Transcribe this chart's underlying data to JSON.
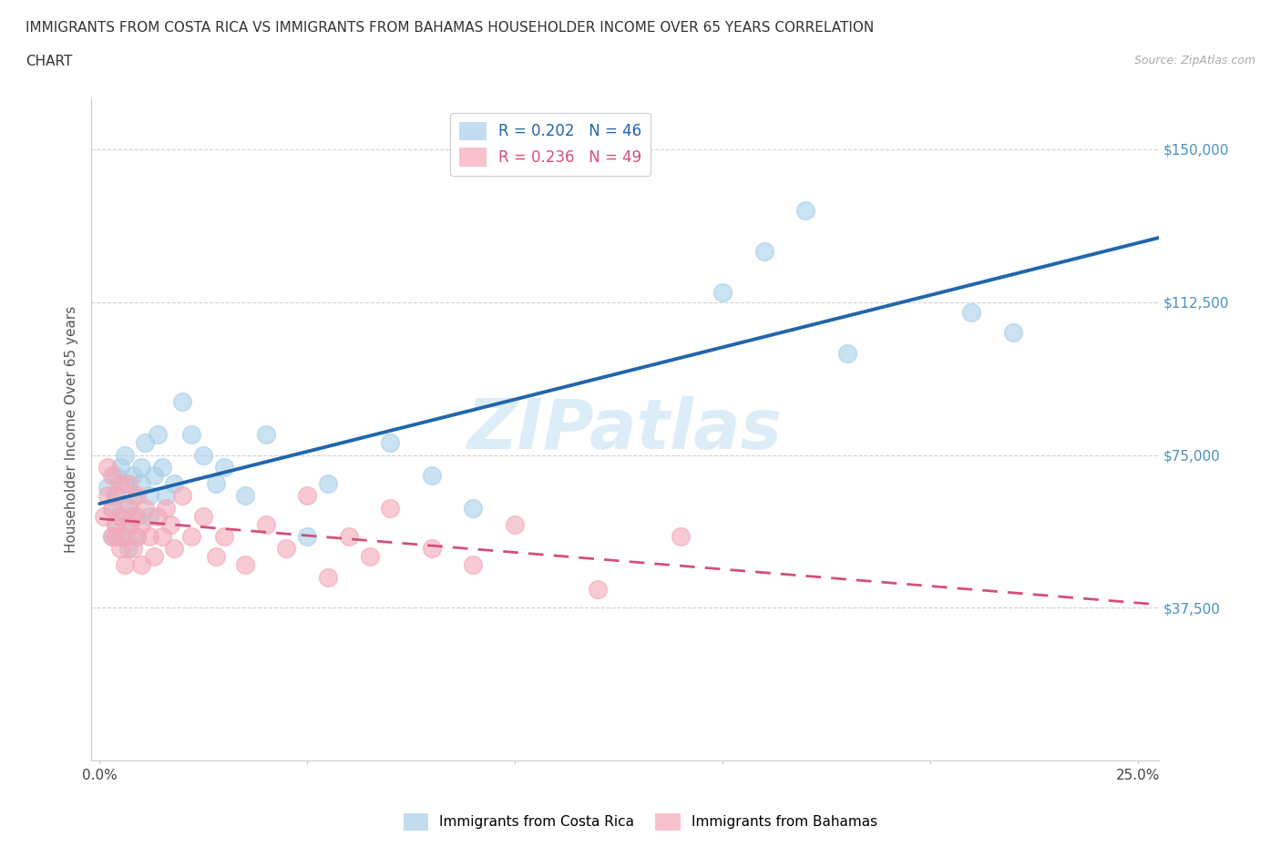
{
  "title_line1": "IMMIGRANTS FROM COSTA RICA VS IMMIGRANTS FROM BAHAMAS HOUSEHOLDER INCOME OVER 65 YEARS CORRELATION",
  "title_line2": "CHART",
  "source": "Source: ZipAtlas.com",
  "ylabel": "Householder Income Over 65 years",
  "xlim": [
    -0.002,
    0.255
  ],
  "ylim": [
    0,
    162500
  ],
  "yticks": [
    0,
    37500,
    75000,
    112500,
    150000
  ],
  "ytick_labels": [
    "",
    "$37,500",
    "$75,000",
    "$112,500",
    "$150,000"
  ],
  "xticks": [
    0.0,
    0.05,
    0.1,
    0.15,
    0.2,
    0.25
  ],
  "xtick_labels": [
    "0.0%",
    "",
    "",
    "",
    "",
    "25.0%"
  ],
  "legend_entries": [
    {
      "label": "R = 0.202   N = 46",
      "color": "#a8cfe8"
    },
    {
      "label": "R = 0.236   N = 49",
      "color": "#f4a8b8"
    }
  ],
  "watermark": "ZIPatlas",
  "cr_color": "#a8cfe8",
  "bah_color": "#f4a8b8",
  "cr_line_color": "#2166ac",
  "bah_line_color": "#d44f7a",
  "grid_color": "#d0d0d0",
  "axis_label_color": "#4a90c4",
  "cr_scatter_x": [
    0.002,
    0.003,
    0.003,
    0.004,
    0.004,
    0.004,
    0.005,
    0.005,
    0.005,
    0.006,
    0.006,
    0.007,
    0.007,
    0.007,
    0.008,
    0.008,
    0.009,
    0.009,
    0.01,
    0.01,
    0.011,
    0.012,
    0.012,
    0.013,
    0.014,
    0.015,
    0.016,
    0.018,
    0.02,
    0.022,
    0.025,
    0.028,
    0.03,
    0.035,
    0.04,
    0.05,
    0.055,
    0.07,
    0.08,
    0.09,
    0.15,
    0.16,
    0.17,
    0.18,
    0.21,
    0.22
  ],
  "cr_scatter_y": [
    67000,
    55000,
    62000,
    70000,
    65000,
    58000,
    72000,
    60000,
    55000,
    68000,
    75000,
    62000,
    58000,
    52000,
    65000,
    70000,
    60000,
    55000,
    68000,
    72000,
    78000,
    65000,
    60000,
    70000,
    80000,
    72000,
    65000,
    68000,
    88000,
    80000,
    75000,
    68000,
    72000,
    65000,
    80000,
    55000,
    68000,
    78000,
    70000,
    62000,
    115000,
    125000,
    135000,
    100000,
    110000,
    105000
  ],
  "bah_scatter_x": [
    0.001,
    0.002,
    0.002,
    0.003,
    0.003,
    0.003,
    0.004,
    0.004,
    0.004,
    0.005,
    0.005,
    0.005,
    0.006,
    0.006,
    0.007,
    0.007,
    0.007,
    0.008,
    0.008,
    0.009,
    0.009,
    0.01,
    0.01,
    0.011,
    0.012,
    0.013,
    0.014,
    0.015,
    0.016,
    0.017,
    0.018,
    0.02,
    0.022,
    0.025,
    0.028,
    0.03,
    0.035,
    0.04,
    0.045,
    0.05,
    0.055,
    0.06,
    0.065,
    0.07,
    0.08,
    0.09,
    0.1,
    0.12,
    0.14
  ],
  "bah_scatter_y": [
    60000,
    65000,
    72000,
    55000,
    62000,
    70000,
    58000,
    65000,
    55000,
    52000,
    60000,
    68000,
    48000,
    55000,
    62000,
    58000,
    68000,
    52000,
    60000,
    55000,
    65000,
    48000,
    58000,
    62000,
    55000,
    50000,
    60000,
    55000,
    62000,
    58000,
    52000,
    65000,
    55000,
    60000,
    50000,
    55000,
    48000,
    58000,
    52000,
    65000,
    45000,
    55000,
    50000,
    62000,
    52000,
    48000,
    58000,
    42000,
    55000
  ],
  "background_color": "#ffffff",
  "title_fontsize": 11,
  "axis_tick_fontsize": 11
}
